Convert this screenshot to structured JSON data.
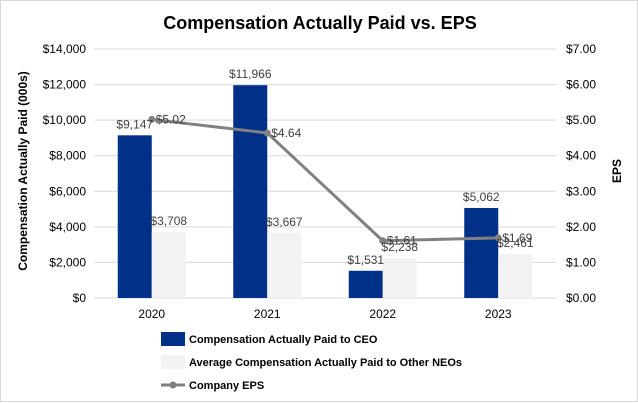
{
  "chart_data": {
    "type": "bar",
    "title": "Compensation Actually Paid vs. EPS",
    "categories": [
      "2020",
      "2021",
      "2022",
      "2023"
    ],
    "ylabel": "Compensation Actually Paid (000s)",
    "y2label": "EPS",
    "ylim": [
      0,
      14000
    ],
    "y2lim": [
      0,
      7
    ],
    "yticks": [
      "$0",
      "$2,000",
      "$4,000",
      "$6,000",
      "$8,000",
      "$10,000",
      "$12,000",
      "$14,000"
    ],
    "y2ticks": [
      "$0.00",
      "$1.00",
      "$2.00",
      "$3.00",
      "$4.00",
      "$5.00",
      "$6.00",
      "$7.00"
    ],
    "grid": true,
    "legend_position": "bottom",
    "series": [
      {
        "name": "Compensation Actually Paid to CEO",
        "kind": "bar",
        "axis": "left",
        "color": "#003087",
        "values": [
          9147,
          11966,
          1531,
          5062
        ],
        "labels": [
          "$9,147",
          "$11,966",
          "$1,531",
          "$5,062"
        ]
      },
      {
        "name": "Average Compensation Actually Paid to Other NEOs",
        "kind": "bar",
        "axis": "left",
        "color": "#f2f2f2",
        "values": [
          3708,
          3667,
          2238,
          2461
        ],
        "labels": [
          "$3,708",
          "$3,667",
          "$2,238",
          "$2,461"
        ]
      },
      {
        "name": "Company EPS",
        "kind": "line",
        "axis": "right",
        "color": "#808080",
        "values": [
          5.02,
          4.64,
          1.61,
          1.69
        ],
        "labels": [
          "$5.02",
          "$4.64",
          "$1.61",
          "$1.69"
        ]
      }
    ]
  }
}
